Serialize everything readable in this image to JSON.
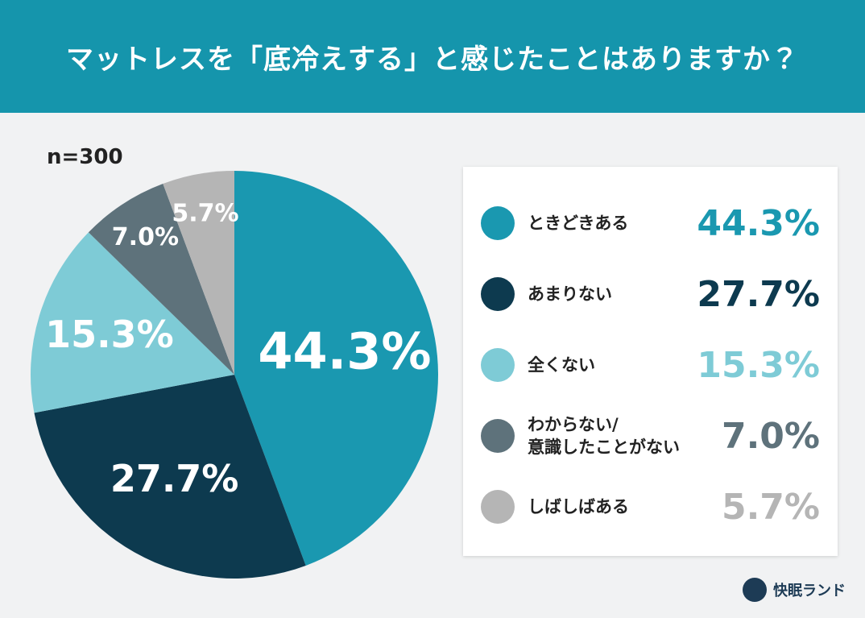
{
  "chart_data": {
    "type": "pie",
    "title": "マットレスを「底冷えする」と感じたことはありますか？",
    "note": "n=300",
    "categories": [
      "ときどきある",
      "あまりない",
      "全くない",
      "わからない/\n意識したことがない",
      "しばしばある"
    ],
    "values": [
      44.3,
      27.7,
      15.3,
      7.0,
      5.7
    ],
    "value_labels": [
      "44.3%",
      "27.7%",
      "15.3%",
      "7.0%",
      "5.7%"
    ],
    "colors": [
      "#1a98b0",
      "#0d3a4f",
      "#7ecbd6",
      "#5e727b",
      "#b5b5b5"
    ]
  },
  "brand": "快眠ランド"
}
